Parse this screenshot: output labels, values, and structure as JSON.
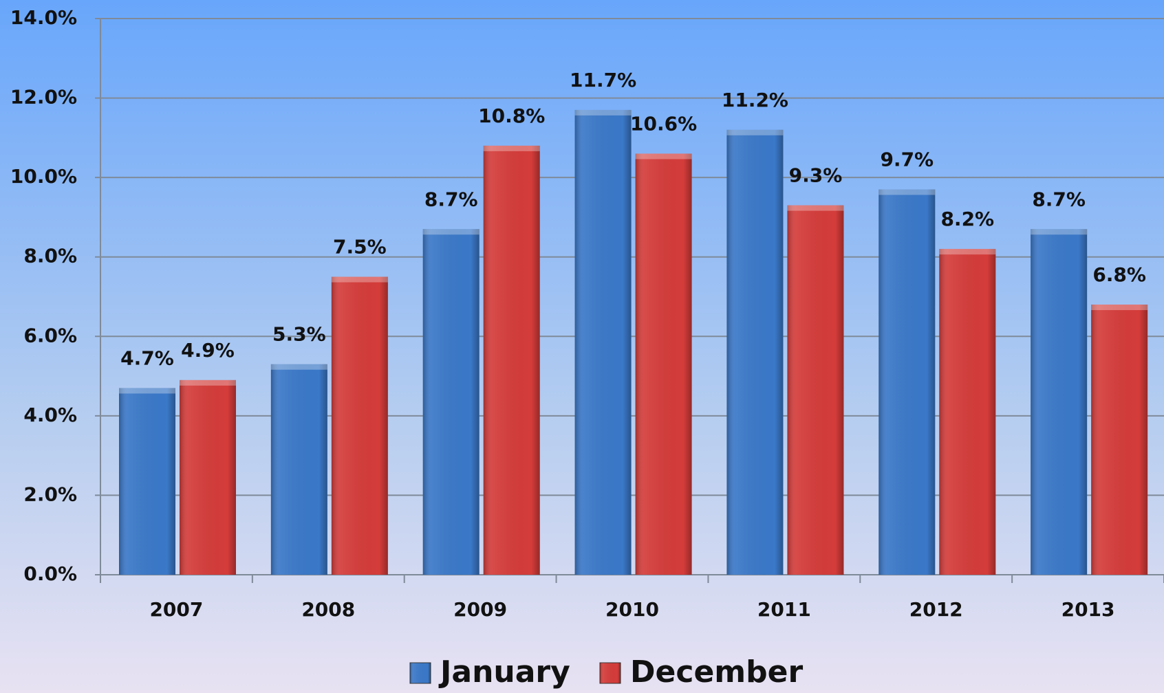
{
  "chart_data": {
    "type": "bar",
    "categories": [
      "2007",
      "2008",
      "2009",
      "2010",
      "2011",
      "2012",
      "2013"
    ],
    "series": [
      {
        "name": "January",
        "color": "#3a78c8",
        "values": [
          4.7,
          5.3,
          8.7,
          11.7,
          11.2,
          9.7,
          8.7
        ],
        "value_labels": [
          "4.7%",
          "5.3%",
          "8.7%",
          "11.7%",
          "11.2%",
          "9.7%",
          "8.7%"
        ]
      },
      {
        "name": "December",
        "color": "#d43c3a",
        "values": [
          4.9,
          7.5,
          10.8,
          10.6,
          9.3,
          8.2,
          6.8
        ],
        "value_labels": [
          "4.9%",
          "7.5%",
          "10.8%",
          "10.6%",
          "9.3%",
          "8.2%",
          "6.8%"
        ]
      }
    ],
    "ylim": [
      0,
      14
    ],
    "yticks": [
      {
        "value": 0,
        "label": "0.0%"
      },
      {
        "value": 2,
        "label": "2.0%"
      },
      {
        "value": 4,
        "label": "4.0%"
      },
      {
        "value": 6,
        "label": "6.0%"
      },
      {
        "value": 8,
        "label": "8.0%"
      },
      {
        "value": 10,
        "label": "10.0%"
      },
      {
        "value": 12,
        "label": "12.0%"
      },
      {
        "value": 14,
        "label": "14.0%"
      }
    ],
    "grid": true,
    "legend": "bottom"
  }
}
